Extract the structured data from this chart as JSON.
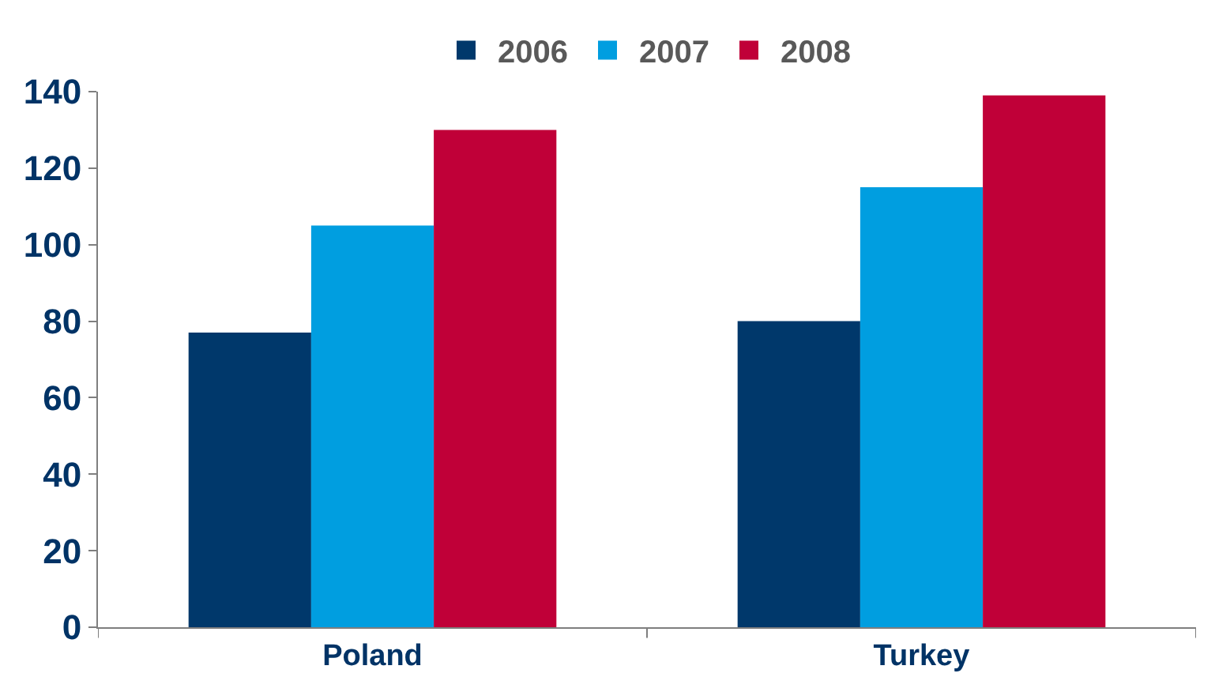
{
  "chart_data": {
    "type": "bar",
    "categories": [
      "Poland",
      "Turkey"
    ],
    "series": [
      {
        "name": "2006",
        "color": "#00386b",
        "values": [
          77,
          80
        ]
      },
      {
        "name": "2007",
        "color": "#009ee0",
        "values": [
          105,
          115
        ]
      },
      {
        "name": "2008",
        "color": "#c00038",
        "values": [
          130,
          139
        ]
      }
    ],
    "ylim": [
      0,
      140
    ],
    "yticks": [
      0,
      20,
      40,
      60,
      80,
      100,
      120,
      140
    ],
    "legend": "top"
  }
}
